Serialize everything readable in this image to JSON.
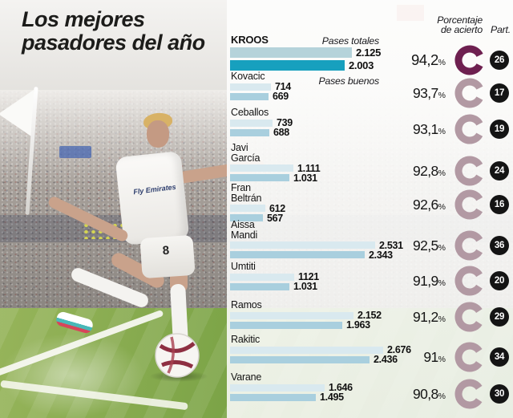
{
  "title": {
    "line1": "Los mejores",
    "line2": "pasadores del año"
  },
  "header": {
    "percent_line1": "Porcentaje",
    "percent_line2": "de acierto",
    "part": "Part."
  },
  "legend": {
    "totales": "Pases totales",
    "buenos": "Pases buenos"
  },
  "percent_suffix": "%",
  "photo": {
    "jersey_sponsor": "Fly Emirates",
    "shorts_number": "8"
  },
  "colors": {
    "accent_dark": "#6e2050",
    "ring_muted": "#b299a3",
    "bar_total_light": "#d9e9ef",
    "bar_good_light": "#a9cfde",
    "bar_total_hl": "#b5d3da",
    "bar_good_hl": "#17a0be",
    "badge": "#141414"
  },
  "chart_data": {
    "type": "bar",
    "orientation": "horizontal",
    "title": "Los mejores pasadores del año",
    "series_names": [
      "Pases totales",
      "Pases buenos"
    ],
    "players": [
      {
        "name": "Kroos",
        "name_lines": [
          "KROOS"
        ],
        "totales": 2125,
        "buenos": 2003,
        "totales_label": "2.125",
        "buenos_label": "2.003",
        "percent": 94.2,
        "percent_label": "94,2",
        "part": "26",
        "highlight": true
      },
      {
        "name": "Kovacic",
        "name_lines": [
          "Kovacic"
        ],
        "totales": 714,
        "buenos": 669,
        "totales_label": "714",
        "buenos_label": "669",
        "percent": 93.7,
        "percent_label": "93,7",
        "part": "17",
        "highlight": false
      },
      {
        "name": "Ceballos",
        "name_lines": [
          "Ceballos"
        ],
        "totales": 739,
        "buenos": 688,
        "totales_label": "739",
        "buenos_label": "688",
        "percent": 93.1,
        "percent_label": "93,1",
        "part": "19",
        "highlight": false
      },
      {
        "name": "Javi García",
        "name_lines": [
          "Javi",
          "García"
        ],
        "totales": 1111,
        "buenos": 1031,
        "totales_label": "1.111",
        "buenos_label": "1.031",
        "percent": 92.8,
        "percent_label": "92,8",
        "part": "24",
        "highlight": false
      },
      {
        "name": "Fran Beltrán",
        "name_lines": [
          "Fran",
          "Beltrán"
        ],
        "totales": 612,
        "buenos": 567,
        "totales_label": "612",
        "buenos_label": "567",
        "percent": 92.6,
        "percent_label": "92,6",
        "part": "16",
        "highlight": false
      },
      {
        "name": "Aissa Mandi",
        "name_lines": [
          "Aissa",
          "Mandi"
        ],
        "totales": 2531,
        "buenos": 2343,
        "totales_label": "2.531",
        "buenos_label": "2.343",
        "percent": 92.5,
        "percent_label": "92,5",
        "part": "36",
        "highlight": false
      },
      {
        "name": "Umtiti",
        "name_lines": [
          "Umtiti"
        ],
        "totales": 1121,
        "buenos": 1031,
        "totales_label": "1121",
        "buenos_label": "1.031",
        "percent": 91.9,
        "percent_label": "91,9",
        "part": "20",
        "highlight": false
      },
      {
        "name": "Ramos",
        "name_lines": [
          "Ramos"
        ],
        "totales": 2152,
        "buenos": 1963,
        "totales_label": "2.152",
        "buenos_label": "1.963",
        "percent": 91.2,
        "percent_label": "91,2",
        "part": "29",
        "highlight": false
      },
      {
        "name": "Rakitic",
        "name_lines": [
          "Rakitic"
        ],
        "totales": 2676,
        "buenos": 2436,
        "totales_label": "2.676",
        "buenos_label": "2.436",
        "percent": 91.0,
        "percent_label": "91",
        "part": "34",
        "highlight": false
      },
      {
        "name": "Varane",
        "name_lines": [
          "Varane"
        ],
        "totales": 1646,
        "buenos": 1495,
        "totales_label": "1.646",
        "buenos_label": "1.495",
        "percent": 90.8,
        "percent_label": "90,8",
        "part": "30",
        "highlight": false
      }
    ]
  }
}
